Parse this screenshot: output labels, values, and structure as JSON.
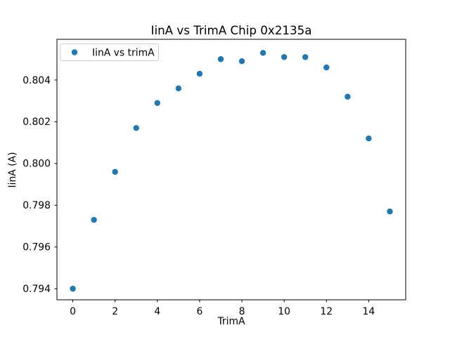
{
  "figure": {
    "background": "#ffffff"
  },
  "chart_data": {
    "type": "scatter",
    "title": "IinA vs TrimA Chip 0x2135a",
    "xlabel": "TrimA",
    "ylabel": "IinA (A)",
    "legend": {
      "position": "upper left",
      "entries": [
        {
          "label": "IinA vs trimA",
          "marker": "circle-icon",
          "color": "#1f77b4"
        }
      ]
    },
    "series": [
      {
        "name": "IinA vs trimA",
        "color": "#1f77b4",
        "x": [
          0,
          1,
          2,
          3,
          4,
          5,
          6,
          7,
          8,
          9,
          10,
          11,
          12,
          13,
          14,
          15
        ],
        "y": [
          0.794,
          0.7973,
          0.7996,
          0.8017,
          0.8029,
          0.8036,
          0.8043,
          0.805,
          0.8049,
          0.8053,
          0.8051,
          0.8051,
          0.8046,
          0.8032,
          0.8012,
          0.7977
        ]
      }
    ],
    "xlim": [
      -0.75,
      15.75
    ],
    "ylim": [
      0.79347,
      0.80595
    ],
    "xticks": [
      0,
      2,
      4,
      6,
      8,
      10,
      12,
      14
    ],
    "yticks": [
      0.794,
      0.796,
      0.798,
      0.8,
      0.802,
      0.804
    ],
    "ytick_decimals": 3,
    "grid": false,
    "axis_color": "#000000",
    "marker_radius": 4.2
  }
}
